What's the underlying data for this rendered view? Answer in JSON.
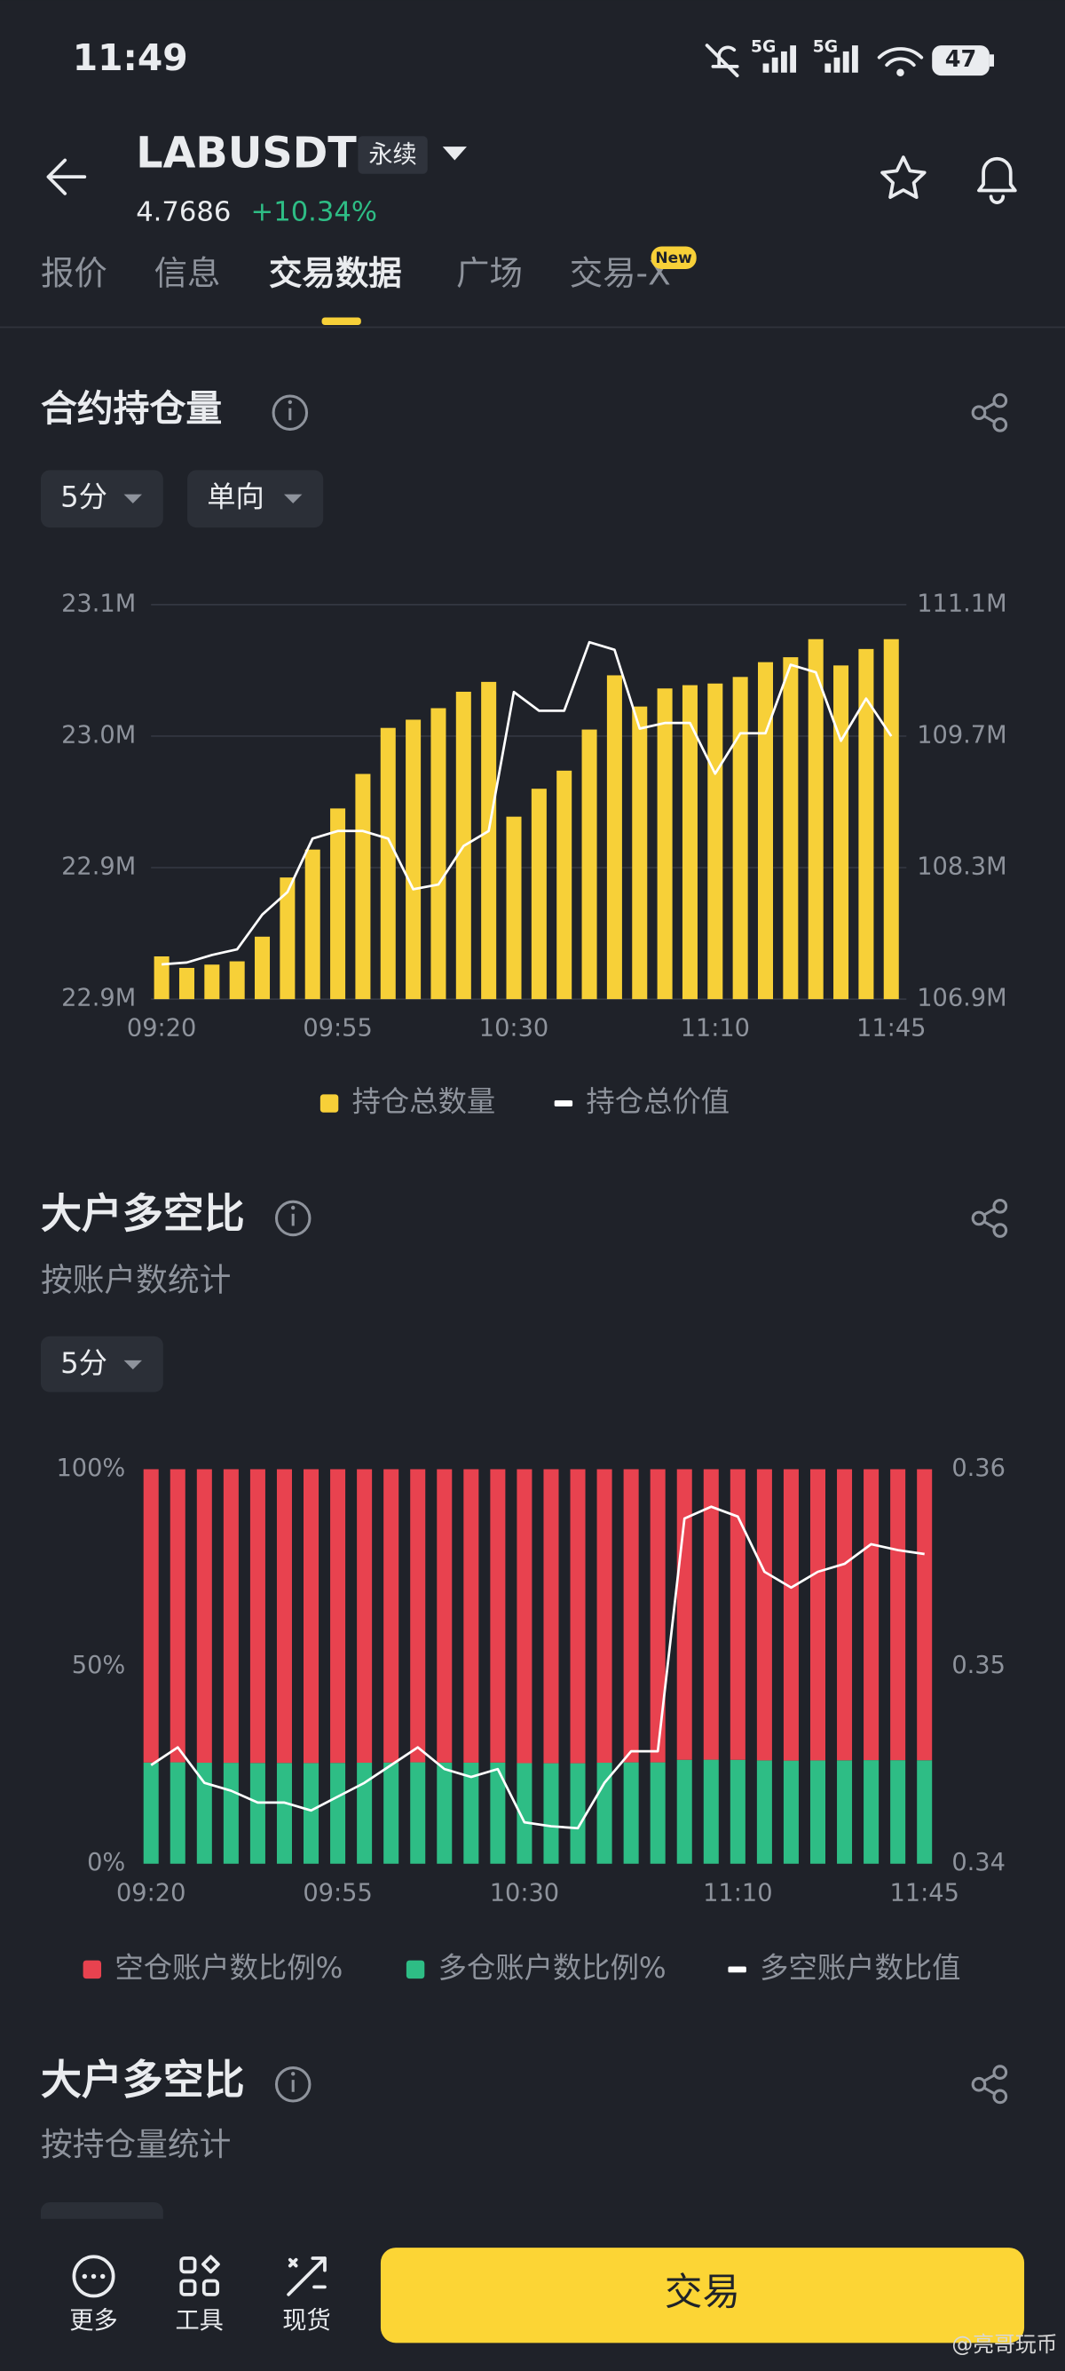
{
  "status_bar": {
    "time": "11:49",
    "network": [
      "5G",
      "5G"
    ],
    "battery": "47"
  },
  "header": {
    "symbol": "LABUSDT",
    "contract_tag": "永续",
    "price": "4.7686",
    "change": "+10.34%"
  },
  "tabs": {
    "items": [
      "报价",
      "信息",
      "交易数据",
      "广场",
      "交易-X"
    ],
    "badge": "New"
  },
  "sections": [
    {
      "title": "合约持仓量",
      "filters": [
        "5分",
        "单向"
      ]
    },
    {
      "title": "大户多空比",
      "subtitle": "按账户数统计",
      "filters": [
        "5分"
      ]
    },
    {
      "title": "大户多空比",
      "subtitle": "按持仓量统计"
    }
  ],
  "chart_data": [
    {
      "type": "bar",
      "categories": [
        "09:20",
        null,
        null,
        null,
        null,
        null,
        null,
        "09:55",
        null,
        null,
        null,
        null,
        null,
        null,
        "10:30",
        null,
        null,
        null,
        null,
        null,
        null,
        null,
        "11:10",
        null,
        null,
        null,
        null,
        null,
        null,
        "11:45"
      ],
      "series": [
        {
          "name": "持仓总数量",
          "color": "#f7d038",
          "values": [
            22.886,
            22.879,
            22.881,
            22.883,
            22.898,
            22.934,
            22.951,
            22.976,
            22.997,
            23.025,
            23.03,
            23.037,
            23.047,
            23.053,
            22.971,
            22.988,
            22.999,
            23.024,
            23.057,
            23.038,
            23.049,
            23.051,
            23.052,
            23.056,
            23.065,
            23.068,
            23.079,
            23.063,
            23.073,
            23.079
          ]
        },
        {
          "name": "持仓总价值",
          "color": "#ffffff",
          "type": "line",
          "axis": "y2",
          "values": [
            107.27,
            107.29,
            107.37,
            107.43,
            107.8,
            108.04,
            108.61,
            108.69,
            108.69,
            108.61,
            108.07,
            108.12,
            108.53,
            108.69,
            110.17,
            109.97,
            109.97,
            110.7,
            110.62,
            109.78,
            109.84,
            109.84,
            109.3,
            109.73,
            109.73,
            110.46,
            110.38,
            109.65,
            110.1,
            109.7
          ]
        }
      ],
      "ylim": [
        22.86,
        23.1
      ],
      "yticks": [
        {
          "value": 22.86,
          "label": "22.9M"
        },
        {
          "value": 22.94,
          "label": "22.9M"
        },
        {
          "value": 23.02,
          "label": "23.0M"
        },
        {
          "value": 23.1,
          "label": "23.1M"
        }
      ],
      "y2lim": [
        106.9,
        111.1
      ],
      "y2ticks": [
        {
          "value": 106.9,
          "label": "106.9M"
        },
        {
          "value": 108.3,
          "label": "108.3M"
        },
        {
          "value": 109.7,
          "label": "109.7M"
        },
        {
          "value": 111.1,
          "label": "111.1M"
        }
      ],
      "grid": true
    },
    {
      "type": "stacked_bar",
      "categories": [
        "09:20",
        null,
        null,
        null,
        null,
        null,
        null,
        "09:55",
        null,
        null,
        null,
        null,
        null,
        null,
        "10:30",
        null,
        null,
        null,
        null,
        null,
        null,
        null,
        "11:10",
        null,
        null,
        null,
        null,
        null,
        null,
        "11:45"
      ],
      "series": [
        {
          "name": "空仓账户数比例%",
          "color": "#e8424f",
          "values": [
            74.35,
            74.3,
            74.4,
            74.42,
            74.46,
            74.46,
            74.48,
            74.44,
            74.4,
            74.35,
            74.3,
            74.36,
            74.38,
            74.36,
            74.51,
            74.53,
            74.53,
            74.4,
            74.31,
            74.31,
            73.66,
            73.63,
            73.66,
            73.81,
            73.86,
            73.81,
            73.79,
            73.74,
            73.75,
            73.77
          ]
        },
        {
          "name": "多仓账户数比例%",
          "color": "#2ebd85",
          "values": [
            25.65,
            25.7,
            25.6,
            25.58,
            25.54,
            25.54,
            25.52,
            25.56,
            25.6,
            25.65,
            25.7,
            25.64,
            25.62,
            25.64,
            25.49,
            25.47,
            25.47,
            25.6,
            25.69,
            25.69,
            26.34,
            26.37,
            26.34,
            26.19,
            26.14,
            26.19,
            26.21,
            26.26,
            26.25,
            26.23
          ]
        },
        {
          "name": "多空账户数比值",
          "color": "#ffffff",
          "type": "line",
          "axis": "y2",
          "values": [
            0.345,
            0.3459,
            0.3441,
            0.3437,
            0.3431,
            0.3431,
            0.3427,
            0.3434,
            0.3441,
            0.345,
            0.3459,
            0.3448,
            0.3444,
            0.3448,
            0.3421,
            0.3419,
            0.3418,
            0.3441,
            0.3457,
            0.3457,
            0.3575,
            0.3581,
            0.3576,
            0.3548,
            0.354,
            0.3548,
            0.3552,
            0.3562,
            0.3559,
            0.3557
          ]
        }
      ],
      "ylim": [
        0,
        100
      ],
      "yticks": [
        {
          "value": 0,
          "label": "0%"
        },
        {
          "value": 50,
          "label": "50%"
        },
        {
          "value": 100,
          "label": "100%"
        }
      ],
      "y2lim": [
        0.34,
        0.36
      ],
      "y2ticks": [
        0.34,
        0.35,
        0.36
      ],
      "grid": false
    }
  ],
  "bottom_nav": {
    "items": [
      "更多",
      "工具",
      "现货"
    ],
    "trade_button": "交易"
  },
  "watermark": "@亮哥玩币"
}
